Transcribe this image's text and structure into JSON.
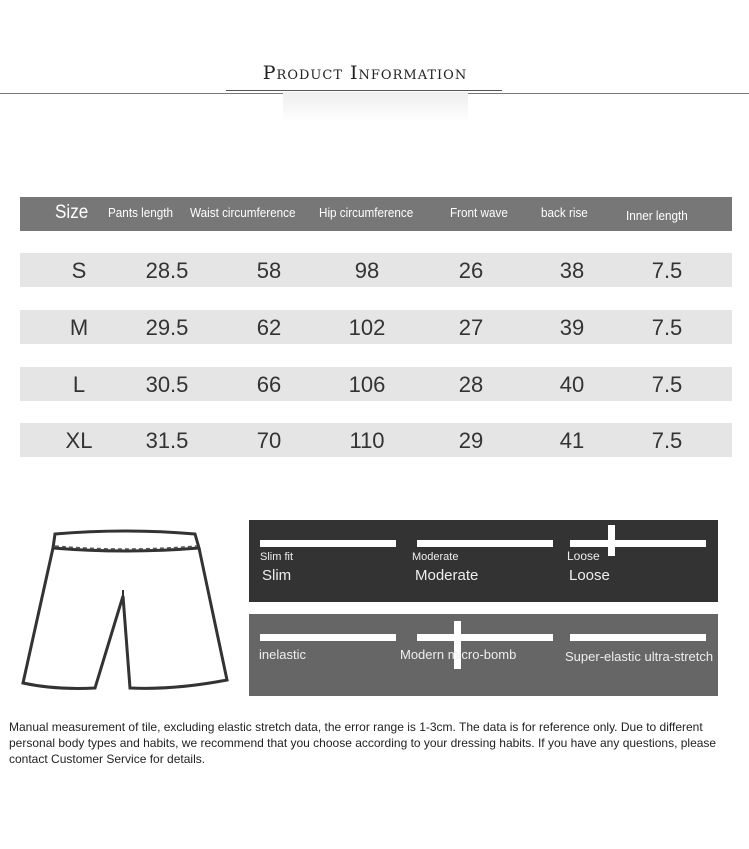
{
  "title": "Product Information",
  "table": {
    "headers": [
      "Size",
      "Pants length",
      "Waist circumference",
      "Hip circumference",
      "Front wave",
      "back rise",
      "Inner length"
    ],
    "rows": [
      [
        "S",
        "28.5",
        "58",
        "98",
        "26",
        "38",
        "7.5"
      ],
      [
        "M",
        "29.5",
        "62",
        "102",
        "27",
        "39",
        "7.5"
      ],
      [
        "L",
        "30.5",
        "66",
        "106",
        "28",
        "40",
        "7.5"
      ],
      [
        "XL",
        "31.5",
        "70",
        "110",
        "29",
        "41",
        "7.5"
      ]
    ]
  },
  "fit": {
    "labels_small": [
      "Slim fit",
      "Moderate",
      "Loose"
    ],
    "labels_large": [
      "Slim",
      "Moderate",
      "Loose"
    ],
    "selected": "Loose"
  },
  "elasticity": {
    "labels": [
      "inelastic",
      "Modern micro-bomb",
      "Super-elastic ultra-stretch"
    ],
    "selected": "Modern micro-bomb"
  },
  "note": "Manual measurement of tile, excluding elastic stretch data, the error range is 1-3cm. The data is for reference only. Due to different personal body types and habits, we recommend that you choose according to your dressing habits. If you have any questions, please contact Customer Service for details."
}
